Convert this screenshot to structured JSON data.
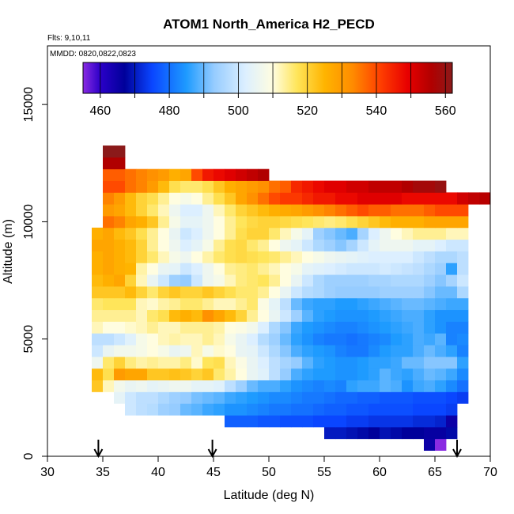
{
  "chart_data": {
    "type": "heatmap",
    "title": "ATOM1 North_America H2_PECD",
    "subtitle": "Flts: 9,10,11",
    "annotation": "MMDD: 0820,0822,0823",
    "xlabel": "Latitude (deg N)",
    "ylabel": "Altitude (m)",
    "xlim": [
      30,
      70
    ],
    "ylim": [
      0,
      17500
    ],
    "x_ticks": [
      "30",
      "35",
      "40",
      "45",
      "50",
      "55",
      "60",
      "65",
      "70"
    ],
    "y_ticks": [
      "0",
      "5000",
      "10000",
      "15000"
    ],
    "colorbar": {
      "range": [
        455,
        562
      ],
      "ticks": [
        "460",
        "480",
        "500",
        "520",
        "540",
        "560"
      ],
      "stops": [
        {
          "v": 455,
          "c": "#8a2be2"
        },
        {
          "v": 460,
          "c": "#2b00c8"
        },
        {
          "v": 467,
          "c": "#00009a"
        },
        {
          "v": 475,
          "c": "#0a46ff"
        },
        {
          "v": 485,
          "c": "#1e9bff"
        },
        {
          "v": 493,
          "c": "#96ccff"
        },
        {
          "v": 502,
          "c": "#dcefff"
        },
        {
          "v": 510,
          "c": "#fffde0"
        },
        {
          "v": 517,
          "c": "#ffe55a"
        },
        {
          "v": 525,
          "c": "#ffb400"
        },
        {
          "v": 533,
          "c": "#ff8c00"
        },
        {
          "v": 541,
          "c": "#ff4000"
        },
        {
          "v": 549,
          "c": "#e80000"
        },
        {
          "v": 556,
          "c": "#b00000"
        },
        {
          "v": 562,
          "c": "#8b1a1a"
        }
      ]
    },
    "arrows_latitude": [
      34.6,
      44.9,
      67.0
    ],
    "bin": {
      "dlat": 1.0,
      "dalt": 500
    },
    "rows": [
      {
        "alt": 500,
        "lat": 64,
        "values": [
          465,
          455
        ]
      },
      {
        "alt": 1000,
        "lat": 55,
        "values": [
          470,
          470,
          469,
          468,
          467,
          469,
          468,
          467,
          467,
          466,
          466,
          468
        ]
      },
      {
        "alt": 1500,
        "lat": 46,
        "values": [
          478,
          478,
          478,
          477,
          477,
          476,
          476,
          476,
          475,
          475,
          475,
          474,
          474,
          473,
          473,
          473,
          473,
          472,
          472,
          471,
          465
        ]
      },
      {
        "alt": 2000,
        "lat": 37,
        "values": [
          500,
          498,
          497,
          494,
          493,
          490,
          489,
          487,
          486,
          484,
          484,
          483,
          482,
          481,
          481,
          480,
          480,
          479,
          478,
          478,
          477,
          477,
          476,
          476,
          476,
          476,
          475,
          475,
          475,
          474
        ]
      },
      {
        "alt": 2500,
        "lat": 36,
        "values": [
          504,
          500,
          498,
          498,
          496,
          494,
          493,
          491,
          490,
          489,
          487,
          486,
          485,
          484,
          483,
          483,
          482,
          481,
          481,
          480,
          479,
          479,
          478,
          478,
          477,
          477,
          477,
          476,
          476,
          476,
          475,
          474
        ]
      },
      {
        "alt": 3000,
        "lat": 34,
        "values": [
          522,
          512,
          507,
          505,
          506,
          504,
          505,
          506,
          506,
          504,
          504,
          503,
          498,
          494,
          490,
          488,
          488,
          486,
          484,
          483,
          482,
          483,
          482,
          486,
          487,
          487,
          489,
          488,
          484,
          487,
          488,
          486,
          483,
          480
        ]
      },
      {
        "alt": 3500,
        "lat": 34,
        "values": [
          524,
          518,
          530,
          528,
          528,
          522,
          522,
          523,
          522,
          520,
          522,
          516,
          513,
          510,
          505,
          503,
          498,
          493,
          488,
          486,
          485,
          485,
          484,
          484,
          485,
          486,
          489,
          487,
          486,
          488,
          490,
          489,
          487,
          483
        ]
      },
      {
        "alt": 4000,
        "lat": 34,
        "values": [
          506,
          516,
          520,
          515,
          513,
          514,
          513,
          513,
          515,
          511,
          517,
          518,
          512,
          509,
          505,
          502,
          498,
          495,
          493,
          489,
          486,
          485,
          484,
          484,
          485,
          486,
          486,
          487,
          490,
          490,
          492,
          492,
          492,
          486
        ]
      },
      {
        "alt": 4500,
        "lat": 34,
        "values": [
          500,
          505,
          507,
          507,
          508,
          510,
          508,
          505,
          506,
          512,
          508,
          511,
          510,
          505,
          504,
          500,
          496,
          492,
          488,
          486,
          485,
          484,
          482,
          481,
          481,
          483,
          485,
          486,
          486,
          488,
          490,
          488,
          486,
          482
        ]
      },
      {
        "alt": 5000,
        "lat": 34,
        "values": [
          498,
          498,
          500,
          503,
          508,
          510,
          512,
          513,
          512,
          512,
          514,
          512,
          508,
          505,
          502,
          497,
          494,
          490,
          486,
          484,
          482,
          481,
          481,
          480,
          481,
          482,
          483,
          485,
          486,
          488,
          487,
          489,
          482,
          483
        ]
      },
      {
        "alt": 5500,
        "lat": 34,
        "values": [
          512,
          510,
          510,
          511,
          512,
          514,
          512,
          512,
          514,
          514,
          514,
          513,
          510,
          509,
          507,
          502,
          496,
          492,
          487,
          485,
          484,
          483,
          482,
          482,
          483,
          484,
          485,
          486,
          487,
          488,
          486,
          484,
          482,
          482
        ]
      },
      {
        "alt": 6000,
        "lat": 34,
        "values": [
          514,
          514,
          514,
          514,
          512,
          516,
          518,
          524,
          526,
          524,
          532,
          528,
          524,
          520,
          514,
          510,
          505,
          500,
          494,
          489,
          486,
          485,
          484,
          484,
          484,
          485,
          486,
          487,
          488,
          488,
          486,
          484,
          484,
          484
        ]
      },
      {
        "alt": 6500,
        "lat": 34,
        "values": [
          516,
          517,
          517,
          517,
          512,
          511,
          513,
          514,
          516,
          516,
          514,
          512,
          512,
          514,
          516,
          509,
          504,
          498,
          490,
          487,
          486,
          486,
          485,
          485,
          486,
          487,
          488,
          489,
          490,
          490,
          489,
          488,
          487,
          487
        ]
      },
      {
        "alt": 7000,
        "lat": 34,
        "values": [
          522,
          522,
          522,
          524,
          520,
          516,
          520,
          522,
          520,
          520,
          522,
          520,
          518,
          516,
          516,
          514,
          510,
          505,
          500,
          497,
          496,
          494,
          493,
          493,
          493,
          493,
          494,
          494,
          494,
          494,
          492,
          490,
          490,
          496
        ]
      },
      {
        "alt": 7500,
        "lat": 34,
        "values": [
          524,
          526,
          528,
          520,
          512,
          505,
          500,
          494,
          493,
          500,
          506,
          508,
          512,
          515,
          516,
          517,
          514,
          510,
          505,
          500,
          496,
          494,
          494,
          494,
          494,
          495,
          495,
          496,
          496,
          496,
          494,
          492,
          495,
          500
        ]
      },
      {
        "alt": 8000,
        "lat": 34,
        "values": [
          526,
          528,
          526,
          525,
          513,
          510,
          505,
          504,
          500,
          502,
          506,
          510,
          514,
          515,
          516,
          514,
          512,
          510,
          508,
          504,
          503,
          502,
          501,
          500,
          500,
          500,
          501,
          500,
          499,
          498,
          496,
          494,
          486,
          498
        ]
      },
      {
        "alt": 8500,
        "lat": 34,
        "values": [
          526,
          528,
          526,
          524,
          520,
          516,
          512,
          508,
          506,
          510,
          513,
          516,
          518,
          519,
          518,
          517,
          516,
          514,
          512,
          510,
          508,
          506,
          505,
          504,
          503,
          502,
          502,
          502,
          502,
          500,
          498,
          496,
          496,
          498
        ]
      },
      {
        "alt": 9000,
        "lat": 34,
        "values": [
          528,
          528,
          526,
          524,
          520,
          514,
          510,
          506,
          502,
          504,
          508,
          514,
          518,
          519,
          516,
          514,
          510,
          506,
          504,
          500,
          496,
          494,
          492,
          495,
          500,
          504,
          506,
          506,
          506,
          504,
          504,
          502,
          500,
          500
        ]
      },
      {
        "alt": 9500,
        "lat": 34,
        "values": [
          526,
          528,
          524,
          522,
          518,
          514,
          510,
          505,
          500,
          502,
          506,
          510,
          514,
          518,
          520,
          520,
          516,
          512,
          508,
          504,
          494,
          492,
          490,
          488,
          495,
          502,
          506,
          510,
          512,
          514,
          514,
          514,
          512,
          512
        ]
      },
      {
        "alt": 10000,
        "lat": 35,
        "values": [
          536,
          534,
          528,
          526,
          522,
          514,
          508,
          504,
          504,
          506,
          510,
          514,
          517,
          519,
          520,
          520,
          519,
          518,
          517,
          516,
          515,
          516,
          518,
          520,
          522,
          524,
          526,
          526,
          526,
          528,
          528,
          528,
          528
        ]
      },
      {
        "alt": 10500,
        "lat": 35,
        "values": [
          530,
          528,
          524,
          520,
          516,
          512,
          506,
          502,
          502,
          506,
          512,
          516,
          520,
          522,
          524,
          526,
          527,
          528,
          530,
          532,
          534,
          536,
          538,
          540,
          538,
          538,
          536,
          536,
          536,
          538,
          540,
          540,
          540
        ]
      },
      {
        "alt": 11000,
        "lat": 35,
        "values": [
          534,
          530,
          524,
          520,
          518,
          514,
          510,
          508,
          510,
          514,
          518,
          522,
          528,
          532,
          536,
          540,
          542,
          542,
          544,
          546,
          546,
          548,
          548,
          550,
          550,
          550,
          550,
          548,
          548,
          548,
          548,
          548,
          552,
          554,
          555
        ]
      },
      {
        "alt": 11500,
        "lat": 35,
        "values": [
          540,
          540,
          536,
          534,
          530,
          524,
          518,
          516,
          516,
          518,
          522,
          526,
          528,
          530,
          532,
          536,
          538,
          544,
          546,
          548,
          550,
          550,
          552,
          552,
          554,
          554,
          554,
          556,
          558,
          558,
          560
        ]
      },
      {
        "alt": 12000,
        "lat": 35,
        "values": [
          538,
          538,
          536,
          534,
          532,
          530,
          526,
          528,
          540,
          546,
          548,
          550,
          552,
          554,
          556
        ]
      },
      {
        "alt": 12500,
        "lat": 35,
        "values": [
          556,
          556
        ]
      },
      {
        "alt": 13000,
        "lat": 35,
        "values": [
          562,
          562
        ]
      }
    ]
  }
}
